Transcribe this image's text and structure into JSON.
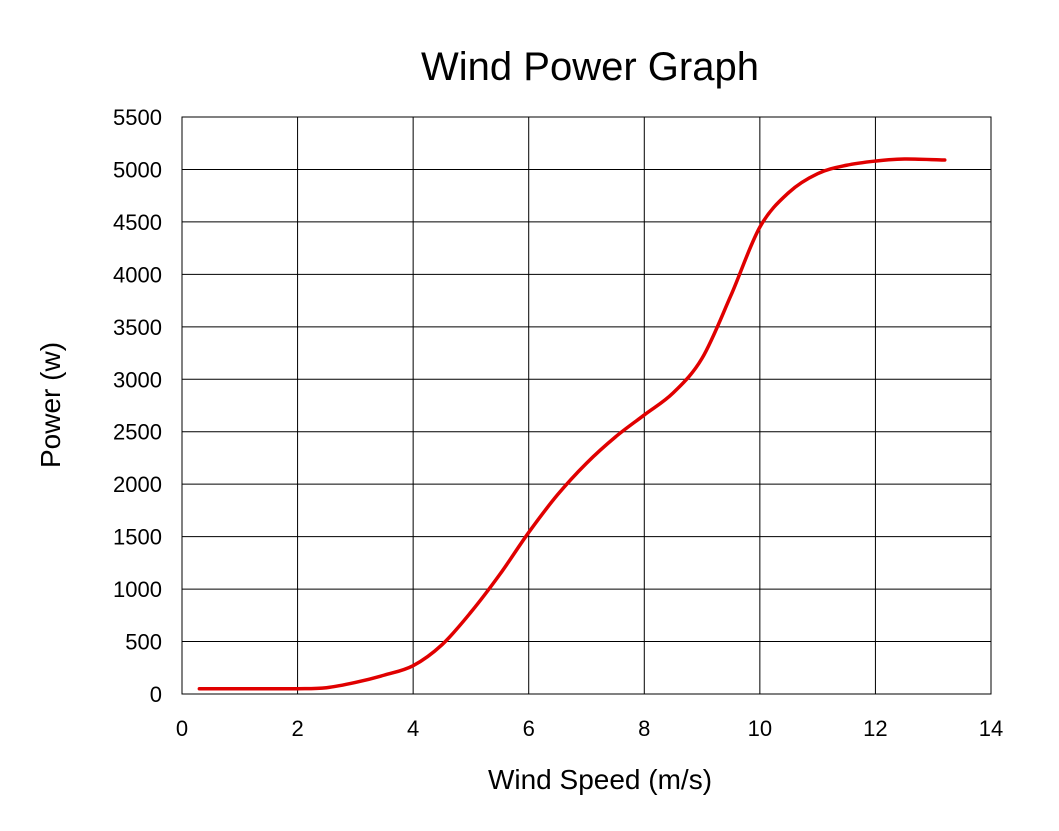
{
  "chart_data": {
    "type": "line",
    "title": "Wind Power Graph",
    "xlabel": "Wind Speed (m/s)",
    "ylabel": "Power (w)",
    "xlim": [
      0,
      14
    ],
    "ylim": [
      0,
      5500
    ],
    "x_ticks": [
      0,
      2,
      4,
      6,
      8,
      10,
      12,
      14
    ],
    "y_ticks": [
      0,
      500,
      1000,
      1500,
      2000,
      2500,
      3000,
      3500,
      4000,
      4500,
      5000,
      5500
    ],
    "grid": true,
    "legend": "none",
    "series": [
      {
        "color": "#e00000",
        "x": [
          0.3,
          1.0,
          2.0,
          2.5,
          3.0,
          3.5,
          4.0,
          4.5,
          5.0,
          5.5,
          6.0,
          6.5,
          7.0,
          7.5,
          8.0,
          8.5,
          9.0,
          9.5,
          10.0,
          10.5,
          11.0,
          11.5,
          12.0,
          12.5,
          13.2
        ],
        "values": [
          50,
          50,
          50,
          60,
          110,
          180,
          270,
          470,
          780,
          1140,
          1540,
          1900,
          2200,
          2450,
          2660,
          2870,
          3200,
          3800,
          4450,
          4780,
          4960,
          5040,
          5080,
          5100,
          5090
        ]
      }
    ]
  }
}
